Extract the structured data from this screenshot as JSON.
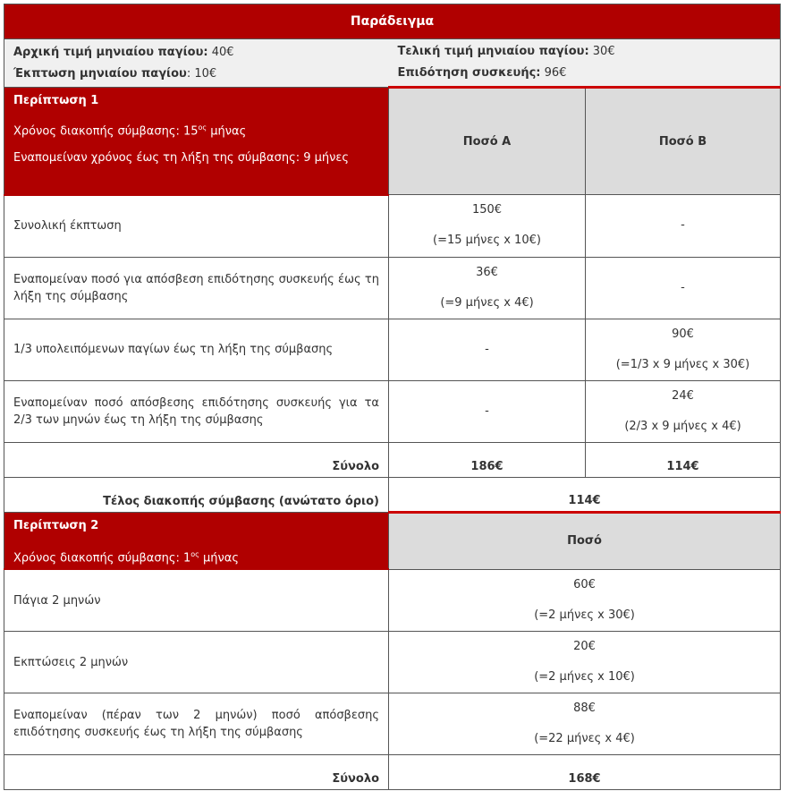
{
  "title": "Παράδειγμα",
  "info": {
    "initial_label": "Αρχική τιμή μηνιαίου παγίου:",
    "initial_value": " 40€",
    "discount_label": "Έκπτωση μηνιαίου παγίου",
    "discount_value": ": 10€",
    "final_label": "Τελική τιμή μηνιαίου παγίου:",
    "final_value": " 30€",
    "subsidy_label": "Επιδότηση συσκευής:",
    "subsidy_value": " 96€"
  },
  "case1": {
    "title": "Περίπτωση 1",
    "time_prefix": "Χρόνος διακοπής σύμβασης: 15",
    "time_sup": "ος",
    "time_suffix": " μήνας",
    "remaining": "Εναπομείναν χρόνος έως τη λήξη της σύμβασης: 9 μήνες",
    "col_a": "Ποσό Α",
    "col_b": "Ποσό Β",
    "rows": [
      {
        "label": "Συνολική έκπτωση",
        "a": "150€",
        "a_note": "(=15 μήνες x 10€)",
        "b": "-",
        "b_note": ""
      },
      {
        "label": "Εναπομείναν ποσό για απόσβεση επιδότησης συσκευής έως τη λήξη της σύμβασης",
        "a": "36€",
        "a_note": "(=9 μήνες x 4€)",
        "b": "-",
        "b_note": ""
      },
      {
        "label": "1/3 υπολειπόμενων παγίων έως τη λήξη της σύμβασης",
        "a": "-",
        "a_note": "",
        "b": "90€",
        "b_note": "(=1/3 x 9 μήνες x 30€)"
      },
      {
        "label": "Εναπομείναν ποσό απόσβεσης επιδότησης συσκευής για τα 2/3 των μηνών έως τη λήξη της σύμβασης",
        "a": "-",
        "a_note": "",
        "b": "24€",
        "b_note": "(2/3 x 9 μήνες x 4€)"
      }
    ],
    "total_label": "Σύνολο",
    "total_a": "186€",
    "total_b": "114€",
    "fee_label": "Τέλος διακοπής σύμβασης (ανώτατο όριο)",
    "fee_value": "114€"
  },
  "case2": {
    "title": "Περίπτωση 2",
    "time_prefix": "Χρόνος διακοπής σύμβασης: 1",
    "time_sup": "ος",
    "time_suffix": "  μήνας",
    "col": "Ποσό",
    "rows": [
      {
        "label": "Πάγια 2 μηνών",
        "value": "60€",
        "note": "(=2 μήνες x 30€)"
      },
      {
        "label": "Εκπτώσεις 2 μηνών",
        "value": "20€",
        "note": "(=2 μήνες x 10€)"
      },
      {
        "label": "Εναπομείναν (πέραν των 2 μηνών) ποσό απόσβεσης επιδότησης συσκευής έως τη λήξη της σύμβασης",
        "value": "88€",
        "note": "(=22 μήνες x 4€)"
      }
    ],
    "total_label": "Σύνολο",
    "total_value": "168€"
  }
}
